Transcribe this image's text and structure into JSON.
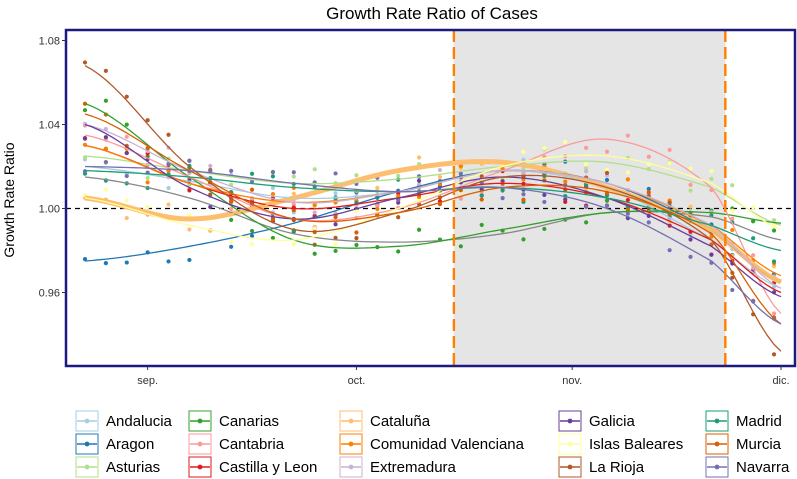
{
  "chart_data": {
    "type": "line",
    "title": "Growth Rate Ratio of Cases",
    "xlabel": "",
    "ylabel": "Growth Rate Ratio",
    "ylim": [
      0.925,
      1.085
    ],
    "y_ticks": [
      0.96,
      1.0,
      1.04,
      1.08
    ],
    "y_tick_labels": [
      "0.96",
      "1.00",
      "1.04",
      "1.08"
    ],
    "x_range_days": [
      0,
      100
    ],
    "x_ticks": [
      {
        "day": 9,
        "label": "sep."
      },
      {
        "day": 39,
        "label": "oct."
      },
      {
        "day": 70,
        "label": "nov."
      },
      {
        "day": 100,
        "label": "dic."
      }
    ],
    "reference_line": {
      "y": 1.0,
      "style": "dashed"
    },
    "shaded_period": {
      "start_day": 53,
      "end_day": 92
    },
    "vertical_lines": [
      53,
      92
    ],
    "point_days": [
      0,
      3,
      6,
      9,
      12,
      15,
      18,
      21,
      24,
      27,
      30,
      33,
      36,
      39,
      42,
      45,
      48,
      51,
      54,
      57,
      60,
      63,
      66,
      69,
      72,
      75,
      78,
      81,
      84,
      87,
      90,
      93,
      96,
      99
    ],
    "series": [
      {
        "name": "Andalucia",
        "color": "#a6cee3",
        "x": [
          0,
          15,
          30,
          45,
          60,
          75,
          90,
          100
        ],
        "values": [
          1.02,
          1.013,
          1.005,
          1.008,
          1.018,
          1.01,
          0.985,
          0.962
        ]
      },
      {
        "name": "Aragon",
        "color": "#1f78b4",
        "x": [
          0,
          15,
          30,
          45,
          60,
          75,
          90,
          100
        ],
        "values": [
          0.975,
          0.982,
          0.993,
          1.008,
          1.018,
          1.012,
          0.99,
          0.965
        ]
      },
      {
        "name": "Asturias",
        "color": "#b2df8a",
        "x": [
          0,
          15,
          30,
          45,
          60,
          75,
          90,
          100
        ],
        "values": [
          1.025,
          1.018,
          1.012,
          1.014,
          1.02,
          1.022,
          1.01,
          0.992
        ]
      },
      {
        "name": "Canarias",
        "color": "#33a02c",
        "x": [
          0,
          15,
          30,
          45,
          60,
          75,
          90,
          100
        ],
        "values": [
          1.05,
          1.015,
          0.985,
          0.982,
          0.99,
          0.998,
          0.998,
          0.993
        ]
      },
      {
        "name": "Cantabria",
        "color": "#fb9a99",
        "x": [
          0,
          15,
          30,
          45,
          60,
          75,
          90,
          100
        ],
        "values": [
          1.035,
          1.015,
          0.995,
          1.0,
          1.018,
          1.033,
          1.01,
          0.95
        ]
      },
      {
        "name": "Castilla y Leon",
        "color": "#e31a1c",
        "x": [
          0,
          15,
          30,
          45,
          60,
          75,
          90,
          100
        ],
        "values": [
          1.03,
          1.012,
          1.0,
          1.005,
          1.012,
          1.005,
          0.985,
          0.96
        ]
      },
      {
        "name": "Cataluña",
        "color": "#fdbf6f",
        "x": [
          0,
          15,
          30,
          45,
          60,
          75,
          90,
          100
        ],
        "values": [
          1.005,
          0.995,
          1.005,
          1.018,
          1.022,
          1.01,
          0.99,
          0.965
        ]
      },
      {
        "name": "Comunidad Valenciana",
        "color": "#ff7f00",
        "x": [
          0,
          15,
          30,
          45,
          60,
          75,
          90,
          100
        ],
        "values": [
          1.03,
          1.012,
          1.003,
          1.008,
          1.018,
          1.012,
          0.992,
          0.968
        ]
      },
      {
        "name": "Extremadura",
        "color": "#cab2d6",
        "x": [
          0,
          15,
          30,
          45,
          60,
          75,
          90,
          100
        ],
        "values": [
          1.04,
          1.018,
          1.003,
          1.008,
          1.018,
          1.012,
          0.992,
          0.962
        ]
      },
      {
        "name": "Galicia",
        "color": "#6a3d9a",
        "x": [
          0,
          15,
          30,
          45,
          60,
          75,
          90,
          100
        ],
        "values": [
          1.04,
          1.01,
          0.995,
          1.005,
          1.015,
          1.005,
          0.982,
          0.958
        ]
      },
      {
        "name": "Islas Baleares",
        "color": "#ffff99",
        "x": [
          0,
          15,
          30,
          45,
          60,
          75,
          90,
          100
        ],
        "values": [
          1.005,
          0.992,
          0.985,
          1.0,
          1.02,
          1.025,
          1.012,
          0.99
        ]
      },
      {
        "name": "La Rioja",
        "color": "#b15928",
        "x": [
          0,
          15,
          30,
          45,
          60,
          75,
          90,
          100
        ],
        "values": [
          1.068,
          1.02,
          0.99,
          0.998,
          1.015,
          1.01,
          0.985,
          0.932
        ]
      },
      {
        "name": "Madrid",
        "color": "#1b9e77",
        "x": [
          0,
          15,
          30,
          45,
          60,
          75,
          90,
          100
        ],
        "values": [
          1.018,
          1.015,
          1.01,
          1.008,
          1.01,
          1.005,
          0.992,
          0.98
        ]
      },
      {
        "name": "Murcia",
        "color": "#d95f02",
        "x": [
          0,
          15,
          30,
          45,
          60,
          75,
          90,
          100
        ],
        "values": [
          1.045,
          1.018,
          0.995,
          0.998,
          1.01,
          1.008,
          0.988,
          0.945
        ]
      },
      {
        "name": "Navarra",
        "color": "#7570b3",
        "x": [
          0,
          15,
          30,
          45,
          60,
          75,
          90,
          100
        ],
        "values": [
          1.02,
          1.018,
          1.012,
          1.008,
          1.01,
          1.0,
          0.975,
          0.945
        ]
      }
    ],
    "extra_series": [
      {
        "name": "Cataluña (thick)",
        "color": "#fdbf6f",
        "x": [
          0,
          15,
          30,
          45,
          60,
          75,
          90,
          100
        ],
        "values": [
          1.005,
          0.995,
          1.005,
          1.018,
          1.022,
          1.01,
          0.99,
          0.965
        ]
      },
      {
        "name": "gray",
        "color": "#888888",
        "x": [
          0,
          15,
          30,
          45,
          60,
          75,
          90,
          100
        ],
        "values": [
          1.015,
          1.005,
          0.988,
          0.984,
          0.988,
          0.998,
          0.996,
          0.985
        ]
      }
    ],
    "legend": {
      "placement": "bottom",
      "columns": [
        [
          "Andalucia",
          "Aragon",
          "Asturias"
        ],
        [
          "Canarias",
          "Cantabria",
          "Castilla y Leon"
        ],
        [
          "Cataluña",
          "Comunidad Valenciana",
          "Extremadura"
        ],
        [
          "Galicia",
          "Islas Baleares",
          "La Rioja"
        ],
        [
          "Madrid",
          "Murcia",
          "Navarra"
        ]
      ]
    }
  }
}
